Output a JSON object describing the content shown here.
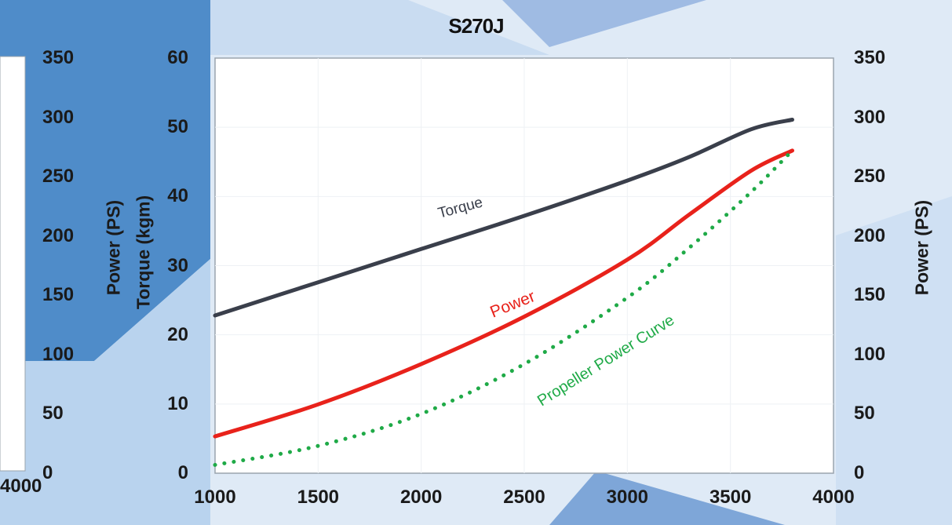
{
  "colors": {
    "torque": "#3a3f4b",
    "power": "#e8221b",
    "propeller": "#1faa47",
    "background_blue": "#4f8cc9",
    "plot_bg": "#ffffff"
  },
  "left_panel": {
    "y_ticks": [
      "350",
      "300",
      "250",
      "200",
      "150",
      "100",
      "50",
      "0"
    ],
    "ylabel": "Power (PS)",
    "x_tick": "4000"
  },
  "chart_data": {
    "type": "line",
    "title": "S270J",
    "xlabel": "",
    "ylabel_left": "Torque (kgm)",
    "ylabel_right": "Power (PS)",
    "xlim": [
      1000,
      4000
    ],
    "ylim_left": [
      0,
      60
    ],
    "ylim_right": [
      0,
      350
    ],
    "x_ticks": [
      "1000",
      "1500",
      "2000",
      "2500",
      "3000",
      "3500",
      "4000"
    ],
    "y_ticks_left": [
      "60",
      "50",
      "40",
      "30",
      "20",
      "10",
      "0"
    ],
    "y_ticks_right": [
      "350",
      "300",
      "250",
      "200",
      "150",
      "100",
      "50",
      "0"
    ],
    "grid": true,
    "legend": "none",
    "series": [
      {
        "name": "Torque",
        "axis": "left",
        "style": "solid",
        "x": [
          1000,
          1500,
          2000,
          2500,
          3000,
          3300,
          3600,
          3800
        ],
        "y": [
          22.8,
          27.6,
          32.4,
          37.2,
          42.3,
          45.7,
          49.7,
          51.1
        ]
      },
      {
        "name": "Power",
        "axis": "right",
        "style": "solid",
        "x": [
          1000,
          1500,
          2000,
          2500,
          3000,
          3300,
          3600,
          3800
        ],
        "y": [
          31,
          58,
          92,
          132,
          180,
          218,
          255,
          272
        ]
      },
      {
        "name": "Propeller Power Curve",
        "axis": "right",
        "style": "dotted",
        "x": [
          1000,
          1500,
          2000,
          2500,
          3000,
          3300,
          3600,
          3800
        ],
        "y": [
          7,
          23,
          50,
          92,
          148,
          190,
          237,
          272
        ]
      }
    ],
    "annotations": [
      {
        "text": "Torque",
        "series": "Torque"
      },
      {
        "text": "Power",
        "series": "Power"
      },
      {
        "text": "Propeller Power Curve",
        "series": "Propeller Power Curve"
      }
    ]
  }
}
